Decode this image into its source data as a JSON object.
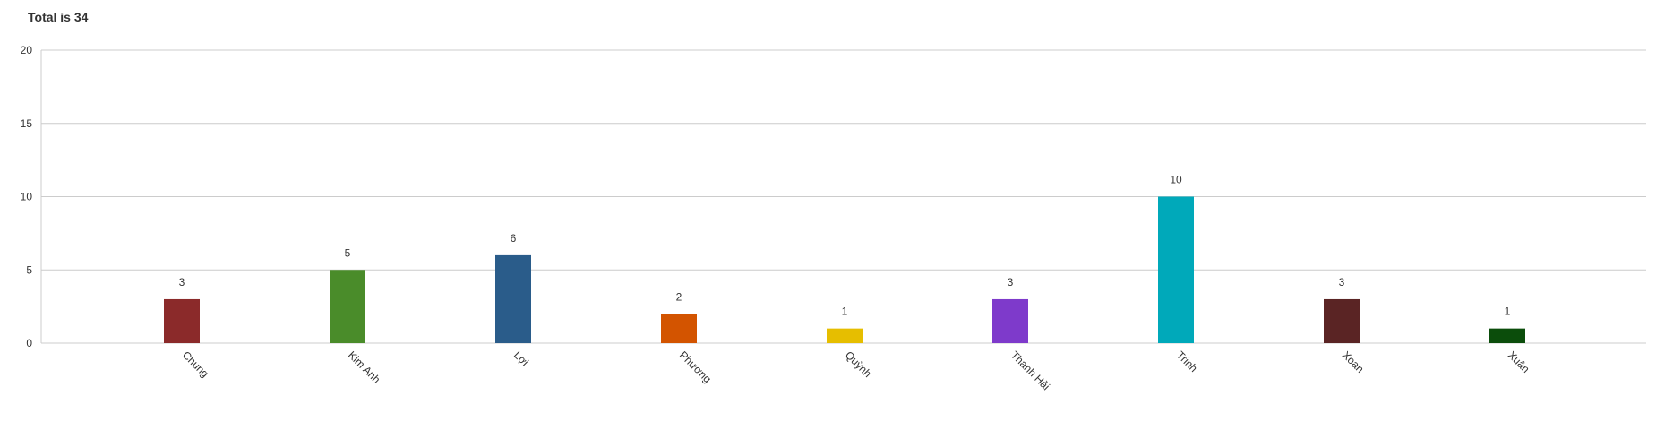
{
  "chart_data": {
    "type": "bar",
    "title": "Total is 34",
    "categories": [
      "Chung",
      "Kim Anh",
      "Lợi",
      "Phương",
      "Quỳnh",
      "Thanh Hải",
      "Trinh",
      "Xoan",
      "Xuân"
    ],
    "values": [
      3,
      5,
      6,
      2,
      1,
      3,
      10,
      3,
      1
    ],
    "colors": [
      "#8b2a2a",
      "#4a8c2a",
      "#2a5c8a",
      "#d35400",
      "#e6be00",
      "#7e3acb",
      "#00a9ba",
      "#5a2424",
      "#0b4d0b"
    ],
    "ylim": [
      0,
      20
    ],
    "yticks": [
      0,
      5,
      10,
      15,
      20
    ],
    "grid": true,
    "xlabel": "",
    "ylabel": ""
  }
}
